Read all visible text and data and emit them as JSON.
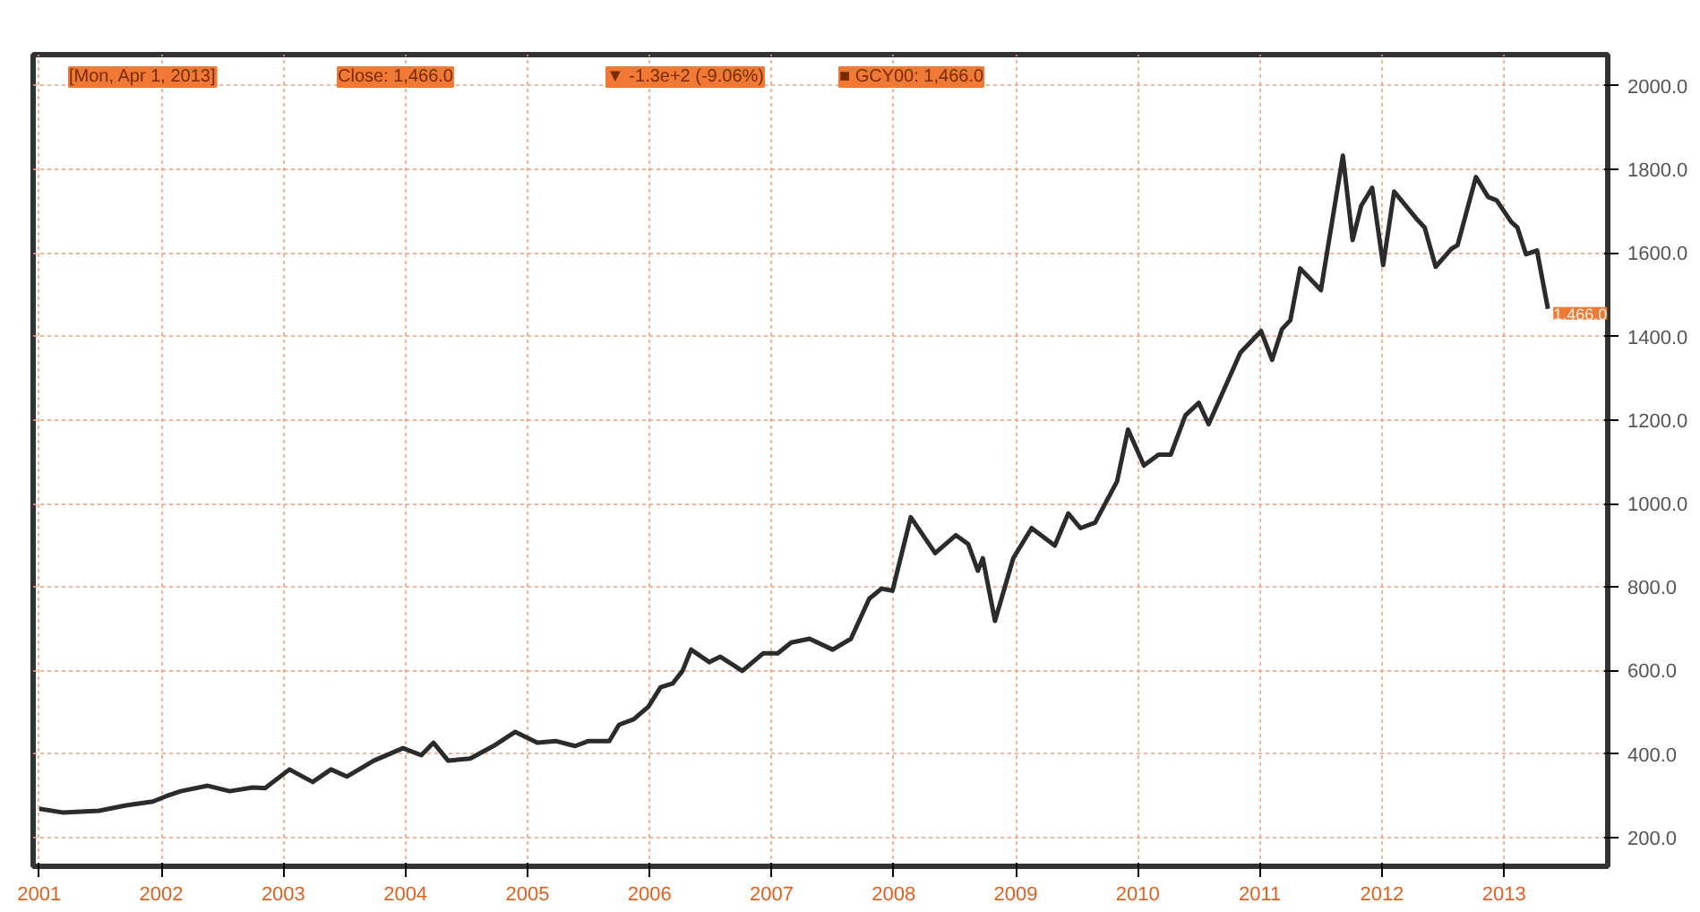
{
  "chart_data": {
    "type": "line",
    "x": [
      2001.0,
      2001.19,
      2001.49,
      2001.71,
      2001.93,
      2002.04,
      2002.16,
      2002.38,
      2002.56,
      2002.75,
      2002.85,
      2003.05,
      2003.24,
      2003.39,
      2003.52,
      2003.74,
      2003.98,
      2004.13,
      2004.23,
      2004.35,
      2004.53,
      2004.72,
      2004.9,
      2005.08,
      2005.23,
      2005.39,
      2005.5,
      2005.67,
      2005.75,
      2005.87,
      2005.99,
      2006.09,
      2006.19,
      2006.27,
      2006.34,
      2006.49,
      2006.58,
      2006.76,
      2006.93,
      2007.05,
      2007.16,
      2007.31,
      2007.5,
      2007.65,
      2007.8,
      2007.9,
      2007.99,
      2008.14,
      2008.34,
      2008.51,
      2008.61,
      2008.69,
      2008.73,
      2008.83,
      2008.98,
      2009.13,
      2009.32,
      2009.43,
      2009.53,
      2009.65,
      2009.83,
      2009.92,
      2010.05,
      2010.17,
      2010.27,
      2010.39,
      2010.5,
      2010.58,
      2010.84,
      2011.01,
      2011.1,
      2011.18,
      2011.25,
      2011.33,
      2011.5,
      2011.68,
      2011.76,
      2011.83,
      2011.92,
      2012.01,
      2012.1,
      2012.28,
      2012.35,
      2012.44,
      2012.57,
      2012.62,
      2012.77,
      2012.87,
      2012.94,
      2013.06,
      2013.11,
      2013.18,
      2013.27,
      2013.36
    ],
    "series": [
      {
        "color": "#2b2b2b",
        "values": [
          269,
          260,
          264,
          277,
          286,
          299,
          311,
          324,
          311,
          320,
          318,
          363,
          333,
          363,
          346,
          384,
          414,
          397,
          427,
          384,
          389,
          419,
          453,
          427,
          431,
          419,
          431,
          431,
          470,
          483,
          513,
          560,
          569,
          599,
          650,
          620,
          633,
          599,
          641,
          641,
          667,
          676,
          650,
          676,
          772,
          796,
          791,
          967,
          881,
          924,
          903,
          839,
          869,
          719,
          869,
          941,
          899,
          976,
          941,
          954,
          1053,
          1177,
          1091,
          1117,
          1117,
          1211,
          1241,
          1190,
          1361,
          1413,
          1344,
          1417,
          1439,
          1563,
          1511,
          1833,
          1631,
          1713,
          1756,
          1571,
          1747,
          1683,
          1661,
          1567,
          1610,
          1619,
          1782,
          1734,
          1726,
          1674,
          1661,
          1597,
          1606,
          1466
        ]
      }
    ],
    "xlim": [
      2000.95,
      2013.85
    ],
    "xticks": [
      {
        "value": 2001,
        "label": "2001"
      },
      {
        "value": 2002,
        "label": "2002"
      },
      {
        "value": 2003,
        "label": "2003"
      },
      {
        "value": 2004,
        "label": "2004"
      },
      {
        "value": 2005,
        "label": "2005"
      },
      {
        "value": 2006,
        "label": "2006"
      },
      {
        "value": 2007,
        "label": "2007"
      },
      {
        "value": 2008,
        "label": "2008"
      },
      {
        "value": 2009,
        "label": "2009"
      },
      {
        "value": 2010,
        "label": "2010"
      },
      {
        "value": 2011,
        "label": "2011"
      },
      {
        "value": 2012,
        "label": "2012"
      },
      {
        "value": 2013,
        "label": "2013"
      }
    ],
    "ylim": [
      131,
      2075
    ],
    "yticks": [
      {
        "value": 200,
        "label": "200.0"
      },
      {
        "value": 400,
        "label": "400.0"
      },
      {
        "value": 600,
        "label": "600.0"
      },
      {
        "value": 800,
        "label": "800.0"
      },
      {
        "value": 1000,
        "label": "1000.0"
      },
      {
        "value": 1200,
        "label": "1200.0"
      },
      {
        "value": 1400,
        "label": "1400.0"
      },
      {
        "value": 1600,
        "label": "1600.0"
      },
      {
        "value": 1800,
        "label": "1800.0"
      },
      {
        "value": 2000,
        "label": "2000.0"
      }
    ],
    "grid": true,
    "marker": "none",
    "line_style": "solid",
    "annotations": [
      "[Mon, Apr 1, 2013]",
      "Close: 1,466.0",
      "▼ -1.3e+2 (-9.06%)",
      "■ GCY00: 1,466.0",
      {
        "text": "1,466.0",
        "x": 2013.36,
        "y": 1466
      }
    ]
  }
}
